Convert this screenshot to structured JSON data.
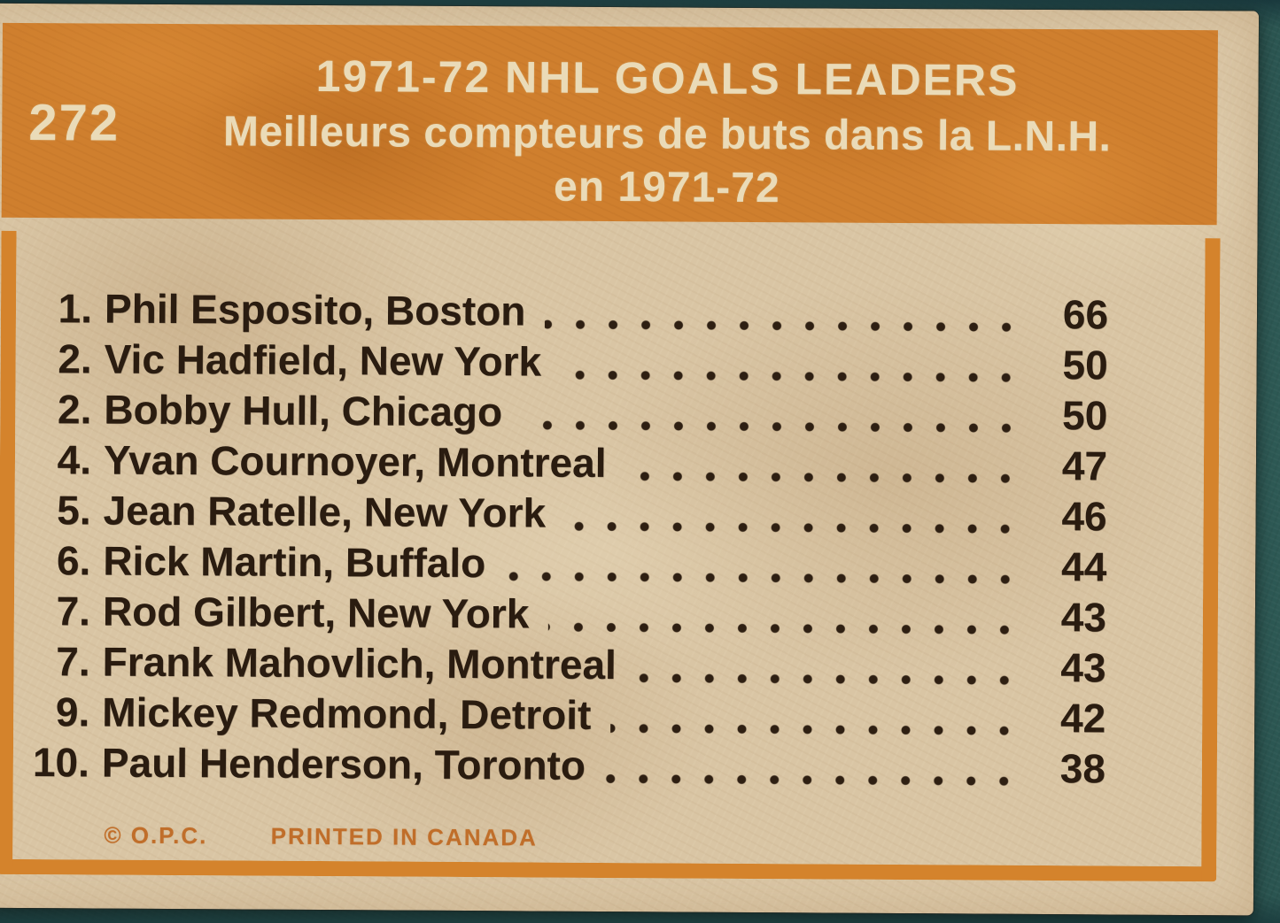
{
  "colors": {
    "background_teal": "#2a5450",
    "card_paper": "#d9c5a4",
    "accent_orange": "#cf7f2e",
    "frame_orange": "#d4832c",
    "ink_dark": "#2a1c10",
    "header_text": "#eadbb8",
    "footer_orange": "#c06e2a"
  },
  "card": {
    "number": "272",
    "title_line1": "1971-72 NHL GOALS LEADERS",
    "title_line2": "Meilleurs compteurs de buts dans la L.N.H.",
    "title_line3": "en 1971-72",
    "footer": {
      "copyright": "© O.P.C.",
      "printed_in": "PRINTED IN CANADA"
    }
  },
  "leaders": [
    {
      "rank": "1.",
      "name": "Phil Esposito, Boston",
      "goals": "66"
    },
    {
      "rank": "2.",
      "name": "Vic Hadfield, New York",
      "goals": "50"
    },
    {
      "rank": "2.",
      "name": "Bobby Hull, Chicago",
      "goals": "50"
    },
    {
      "rank": "4.",
      "name": "Yvan Cournoyer, Montreal",
      "goals": "47"
    },
    {
      "rank": "5.",
      "name": "Jean Ratelle, New York",
      "goals": "46"
    },
    {
      "rank": "6.",
      "name": "Rick Martin, Buffalo",
      "goals": "44"
    },
    {
      "rank": "7.",
      "name": "Rod Gilbert, New York",
      "goals": "43"
    },
    {
      "rank": "7.",
      "name": "Frank Mahovlich, Montreal",
      "goals": "43"
    },
    {
      "rank": "9.",
      "name": "Mickey Redmond, Detroit",
      "goals": "42"
    },
    {
      "rank": "10.",
      "name": "Paul Henderson, Toronto",
      "goals": "38"
    }
  ]
}
